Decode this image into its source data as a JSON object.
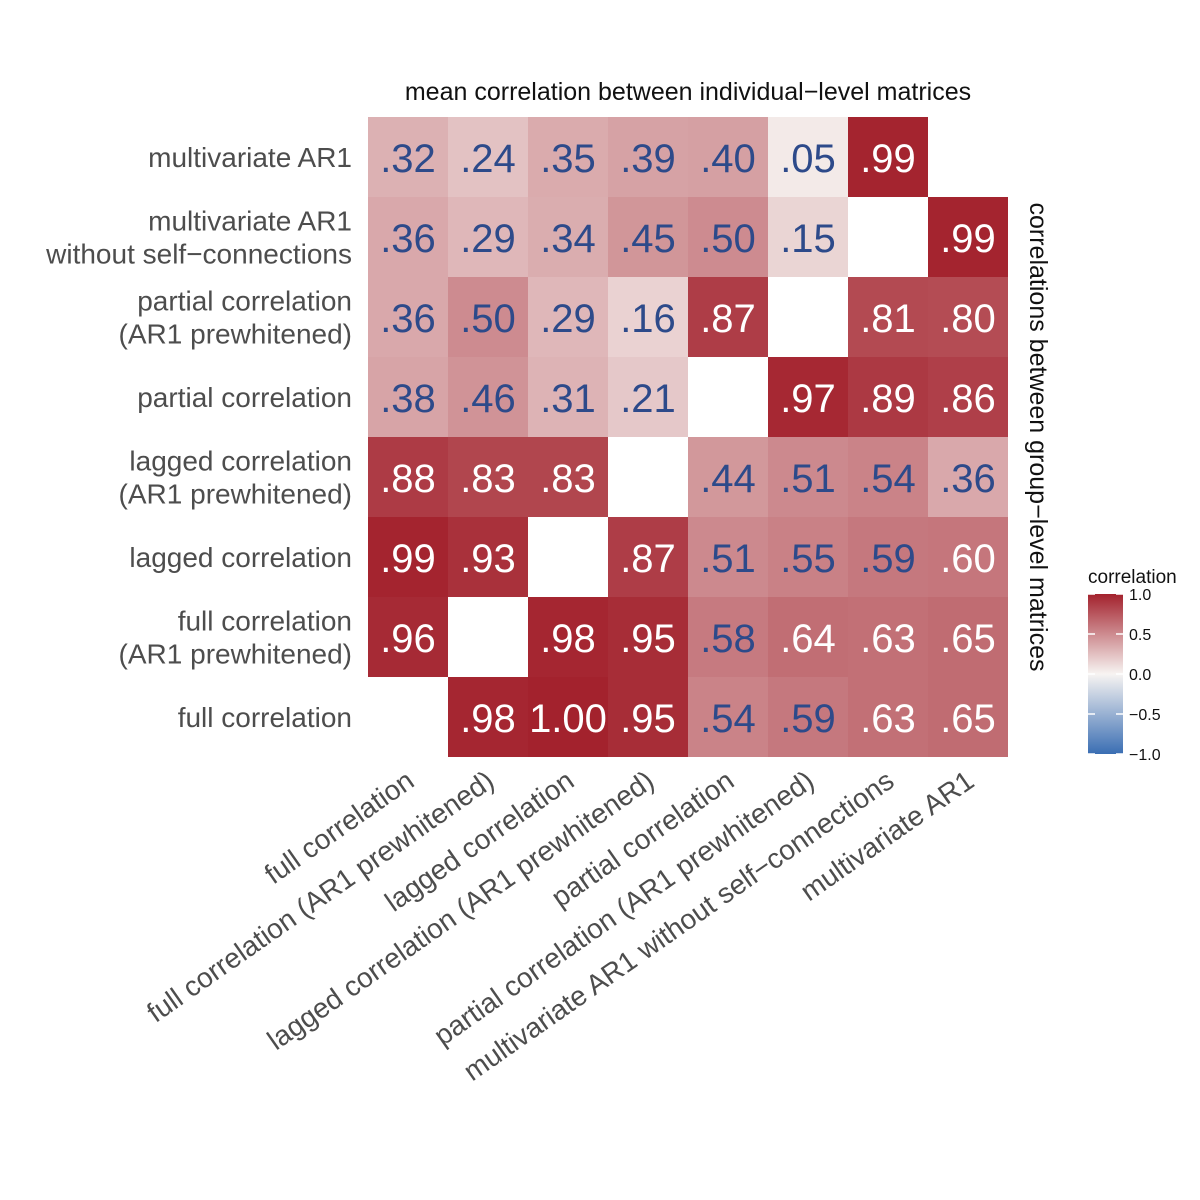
{
  "chart_data": {
    "type": "heatmap",
    "title_top": "mean correlation between individual−level matrices",
    "title_right": "correlations between group−level matrices",
    "x_categories": [
      "full correlation",
      "full correlation (AR1 prewhitened)",
      "lagged correlation",
      "lagged correlation (AR1 prewhitened)",
      "partial correlation",
      "partial correlation (AR1 prewhitened)",
      "multivariate AR1 without self−connections",
      "multivariate AR1"
    ],
    "y_categories": [
      [
        "multivariate AR1"
      ],
      [
        "multivariate AR1",
        "without self−connections"
      ],
      [
        "partial correlation",
        "(AR1 prewhitened)"
      ],
      [
        "partial correlation"
      ],
      [
        "lagged correlation",
        "(AR1 prewhitened)"
      ],
      [
        "lagged correlation"
      ],
      [
        "full correlation",
        "(AR1 prewhitened)"
      ],
      [
        "full correlation"
      ]
    ],
    "values": [
      [
        0.32,
        0.24,
        0.35,
        0.39,
        0.4,
        0.05,
        0.99,
        null
      ],
      [
        0.36,
        0.29,
        0.34,
        0.45,
        0.5,
        0.15,
        null,
        0.99
      ],
      [
        0.36,
        0.5,
        0.29,
        0.16,
        0.87,
        null,
        0.81,
        0.8
      ],
      [
        0.38,
        0.46,
        0.31,
        0.21,
        null,
        0.97,
        0.89,
        0.86
      ],
      [
        0.88,
        0.83,
        0.83,
        null,
        0.44,
        0.51,
        0.54,
        0.36
      ],
      [
        0.99,
        0.93,
        null,
        0.87,
        0.51,
        0.55,
        0.59,
        0.6
      ],
      [
        0.96,
        null,
        0.98,
        0.95,
        0.58,
        0.64,
        0.63,
        0.65
      ],
      [
        null,
        0.98,
        1.0,
        0.95,
        0.54,
        0.59,
        0.63,
        0.65
      ]
    ],
    "cell_labels": [
      [
        ".32",
        ".24",
        ".35",
        ".39",
        ".40",
        ".05",
        ".99",
        ""
      ],
      [
        ".36",
        ".29",
        ".34",
        ".45",
        ".50",
        ".15",
        "",
        ".99"
      ],
      [
        ".36",
        ".50",
        ".29",
        ".16",
        ".87",
        "",
        ".81",
        ".80"
      ],
      [
        ".38",
        ".46",
        ".31",
        ".21",
        "",
        ".97",
        ".89",
        ".86"
      ],
      [
        ".88",
        ".83",
        ".83",
        "",
        ".44",
        ".51",
        ".54",
        ".36"
      ],
      [
        ".99",
        ".93",
        "",
        ".87",
        ".51",
        ".55",
        ".59",
        ".60"
      ],
      [
        ".96",
        "",
        ".98",
        ".95",
        ".58",
        ".64",
        ".63",
        ".65"
      ],
      [
        "",
        ".98",
        "1.00",
        ".95",
        ".54",
        ".59",
        ".63",
        ".65"
      ]
    ],
    "label_color_rule": {
      "dark_label_color": "#2d4a8a",
      "light_label_color": "#ffffff",
      "white_label_from_value": 0.6
    },
    "legend": {
      "title": "correlation",
      "ticks": [
        1.0,
        0.5,
        0.0,
        -0.5,
        -1.0
      ],
      "tick_labels": [
        "1.0",
        "0.5",
        "0.0",
        "−0.5",
        "−1.0"
      ],
      "range": [
        -1.0,
        1.0
      ]
    },
    "color_scale": {
      "low": "#3a6eb3",
      "mid": "#f7f4f2",
      "high": "#a3222d",
      "domain": [
        -1,
        0,
        1
      ]
    }
  }
}
